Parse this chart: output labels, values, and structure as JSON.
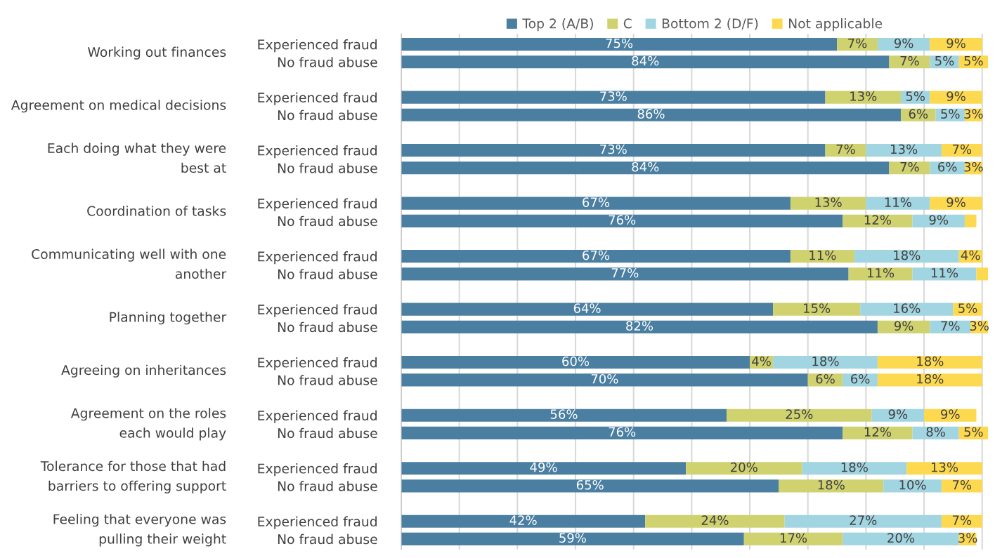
{
  "chart_data": {
    "type": "bar",
    "orientation": "horizontal",
    "stacked": true,
    "categories": [
      "Experienced fraud",
      "No fraud abuse",
      "Experienced fraud",
      "No fraud abuse",
      "Experienced fraud",
      "No fraud abuse",
      "Experienced fraud",
      "No fraud abuse",
      "Experienced fraud",
      "No fraud abuse",
      "Experienced fraud",
      "No fraud abuse",
      "Experienced fraud",
      "No fraud abuse",
      "Experienced fraud",
      "No fraud abuse",
      "Experienced fraud",
      "No fraud abuse",
      "Experienced fraud",
      "No fraud abuse"
    ],
    "annotations": [
      "Working out finances",
      "Agreement on medical decisions",
      "Each doing what they were\nbest at",
      "Coordination of tasks",
      "Communicating well with one\nanother",
      "Planning together",
      "Agreeing on inheritances",
      "Agreement on the roles\neach would play",
      "Tolerance for those that had\nbarriers to offering support",
      "Feeling that everyone was\npulling their weight"
    ],
    "series": [
      {
        "name": "Top 2 (A/B)",
        "color": "#4b7fa1",
        "values": [
          75,
          84,
          73,
          86,
          73,
          84,
          67,
          76,
          67,
          77,
          64,
          82,
          60,
          70,
          56,
          76,
          49,
          65,
          42,
          59
        ],
        "value_labels": [
          "75%",
          "84%",
          "73%",
          "86%",
          "73%",
          "84%",
          "67%",
          "76%",
          "67%",
          "77%",
          "64%",
          "82%",
          "60%",
          "70%",
          "56%",
          "76%",
          "49%",
          "65%",
          "42%",
          "59%"
        ]
      },
      {
        "name": "C",
        "color": "#cfd26f",
        "values": [
          7,
          7,
          13,
          6,
          7,
          7,
          13,
          12,
          11,
          11,
          15,
          9,
          4,
          6,
          25,
          12,
          20,
          18,
          24,
          17
        ],
        "value_labels": [
          "7%",
          "7%",
          "13%",
          "6%",
          "7%",
          "7%",
          "13%",
          "12%",
          "11%",
          "11%",
          "15%",
          "9%",
          "4%",
          "6%",
          "25%",
          "12%",
          "20%",
          "18%",
          "24%",
          "17%"
        ]
      },
      {
        "name": "Bottom 2 (D/F)",
        "color": "#a1d5e1",
        "values": [
          9,
          5,
          5,
          5,
          13,
          6,
          11,
          9,
          18,
          11,
          16,
          7,
          18,
          6,
          9,
          8,
          18,
          10,
          27,
          20
        ],
        "value_labels": [
          "9%",
          "5%",
          "5%",
          "5%",
          "13%",
          "6%",
          "11%",
          "9%",
          "18%",
          "11%",
          "16%",
          "7%",
          "18%",
          "6%",
          "9%",
          "8%",
          "18%",
          "10%",
          "27%",
          "20%"
        ]
      },
      {
        "name": "Not applicable",
        "color": "#fdd94f",
        "values": [
          9,
          5,
          9,
          3,
          7,
          3,
          9,
          2,
          4,
          2,
          5,
          3,
          18,
          18,
          9,
          5,
          13,
          7,
          7,
          3
        ],
        "value_labels": [
          "9%",
          "5%",
          "9%",
          "3%",
          "7%",
          "3%",
          "9%",
          null,
          "4%",
          null,
          "5%",
          "3%",
          "18%",
          "18%",
          "9%",
          "5%",
          "13%",
          "7%",
          "7%",
          "3%"
        ]
      }
    ],
    "xlim": [
      0,
      101
    ],
    "xticks": [
      {
        "value": 0,
        "label": null
      },
      {
        "value": 10,
        "label": null
      },
      {
        "value": 20,
        "label": null
      },
      {
        "value": 30,
        "label": null
      },
      {
        "value": 40,
        "label": null
      },
      {
        "value": 50,
        "label": null
      },
      {
        "value": 60,
        "label": null
      },
      {
        "value": 70,
        "label": null
      },
      {
        "value": 80,
        "label": null
      },
      {
        "value": 90,
        "label": null
      },
      {
        "value": 100,
        "label": null
      }
    ],
    "grid": "x",
    "legend": "top",
    "tick_labels": "y"
  }
}
